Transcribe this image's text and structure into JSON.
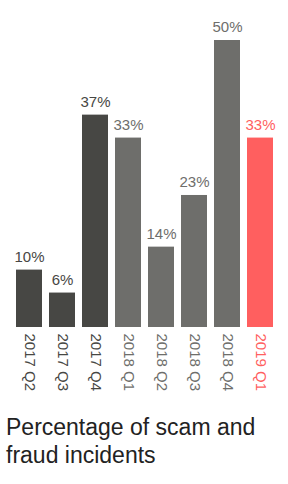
{
  "chart_data": {
    "type": "bar",
    "title": "Percentage of scam and fraud incidents",
    "categories": [
      "2017 Q2",
      "2017 Q3",
      "2017 Q4",
      "2018 Q1",
      "2018 Q2",
      "2018 Q3",
      "2018 Q4",
      "2019 Q1"
    ],
    "values": [
      10,
      6,
      37,
      33,
      14,
      23,
      50,
      33
    ],
    "value_labels": [
      "10%",
      "6%",
      "37%",
      "33%",
      "14%",
      "23%",
      "50%",
      "33%"
    ],
    "colors": [
      "#474744",
      "#474744",
      "#474744",
      "#6e6e6b",
      "#6e6e6b",
      "#6e6e6b",
      "#6e6e6b",
      "#ff5f5f"
    ],
    "ylim": [
      0,
      50
    ],
    "data_labels": true,
    "tick_labels": "x",
    "grid": false
  }
}
